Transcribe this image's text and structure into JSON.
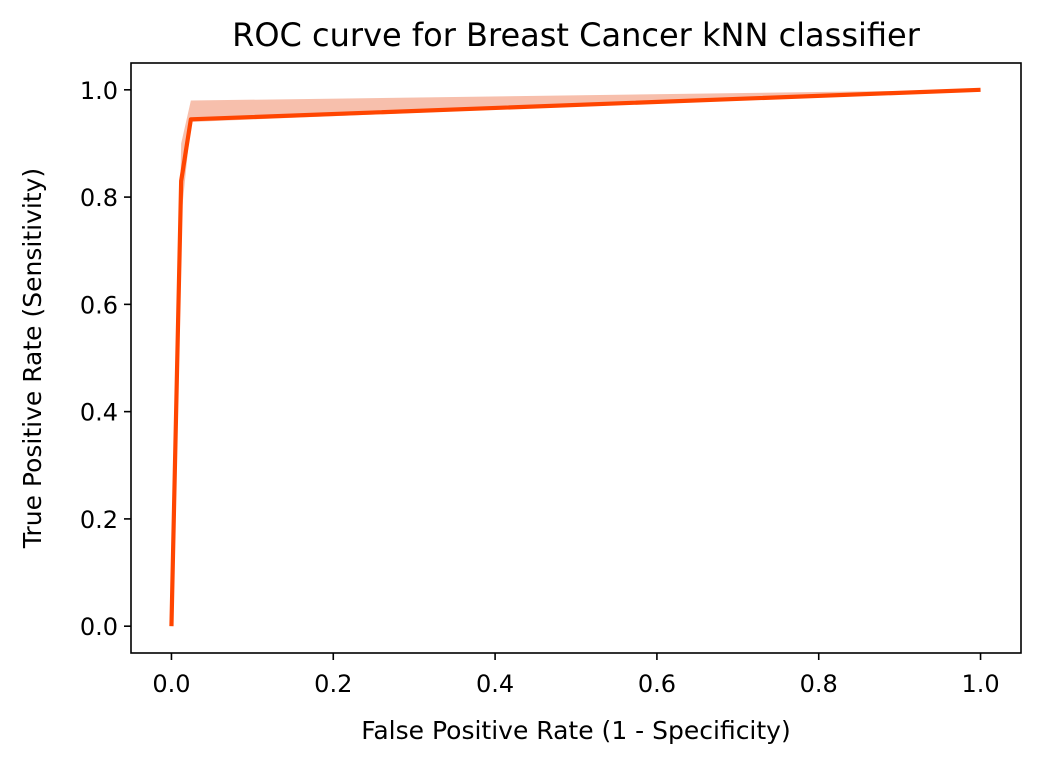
{
  "chart_data": {
    "type": "line",
    "title": "ROC curve for Breast Cancer kNN classifier",
    "xlabel": "False Positive Rate (1 - Specificity)",
    "ylabel": "True Positive Rate (Sensitivity)",
    "xlim": [
      -0.05,
      1.05
    ],
    "ylim": [
      -0.05,
      1.05
    ],
    "xticks": [
      "0.0",
      "0.2",
      "0.4",
      "0.6",
      "0.8",
      "1.0"
    ],
    "yticks": [
      "0.0",
      "0.2",
      "0.4",
      "0.6",
      "0.8",
      "1.0"
    ],
    "grid": false,
    "legend": "none",
    "series": [
      {
        "color": "#ff4500",
        "band_color": "#f6b49d",
        "x": [
          0.0,
          0.012,
          0.024,
          1.0
        ],
        "y": [
          0.0,
          0.83,
          0.945,
          1.0
        ],
        "ci_low": [
          0.0,
          0.76,
          0.94,
          1.0
        ],
        "ci_high": [
          0.0,
          0.9,
          0.98,
          1.0
        ]
      }
    ]
  }
}
